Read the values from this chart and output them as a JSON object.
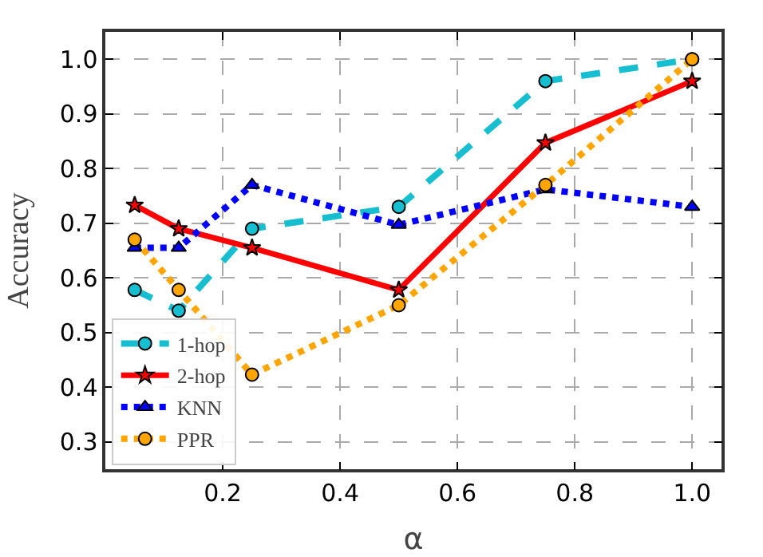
{
  "chart_data": {
    "type": "line",
    "xlabel": "α",
    "ylabel": "Accuracy",
    "x": [
      0.05,
      0.125,
      0.25,
      0.5,
      0.75,
      1.0
    ],
    "xlim": [
      0,
      1.05
    ],
    "ylim": [
      0.25,
      1.05
    ],
    "xticks": [
      {
        "value": 0.2,
        "label": "0.2"
      },
      {
        "value": 0.4,
        "label": "0.4"
      },
      {
        "value": 0.6,
        "label": "0.6"
      },
      {
        "value": 0.8,
        "label": "0.8"
      },
      {
        "value": 1.0,
        "label": "1.0"
      }
    ],
    "yticks": [
      {
        "value": 0.3,
        "label": "0.3"
      },
      {
        "value": 0.4,
        "label": "0.4"
      },
      {
        "value": 0.5,
        "label": "0.5"
      },
      {
        "value": 0.6,
        "label": "0.6"
      },
      {
        "value": 0.7,
        "label": "0.7"
      },
      {
        "value": 0.8,
        "label": "0.8"
      },
      {
        "value": 0.9,
        "label": "0.9"
      },
      {
        "value": 1.0,
        "label": "1.0"
      }
    ],
    "grid": true,
    "legend": "bottom left",
    "series": [
      {
        "name": "1-hop",
        "color": "#17becf",
        "line_style": "dashed",
        "marker": "circle",
        "values": [
          0.578,
          0.54,
          0.69,
          0.73,
          0.96,
          1.0
        ]
      },
      {
        "name": "2-hop",
        "color": "#ff0000",
        "line_style": "solid",
        "marker": "star",
        "values": [
          0.733,
          0.69,
          0.655,
          0.578,
          0.847,
          0.96
        ]
      },
      {
        "name": "KNN",
        "color": "#0000ff",
        "line_style": "dotted",
        "marker": "triangle",
        "values": [
          0.655,
          0.655,
          0.77,
          0.697,
          0.762,
          0.73
        ]
      },
      {
        "name": "PPR",
        "color": "#ffa500",
        "line_style": "dotted",
        "marker": "circle",
        "values": [
          0.67,
          0.578,
          0.423,
          0.55,
          0.77,
          1.0
        ]
      }
    ]
  }
}
